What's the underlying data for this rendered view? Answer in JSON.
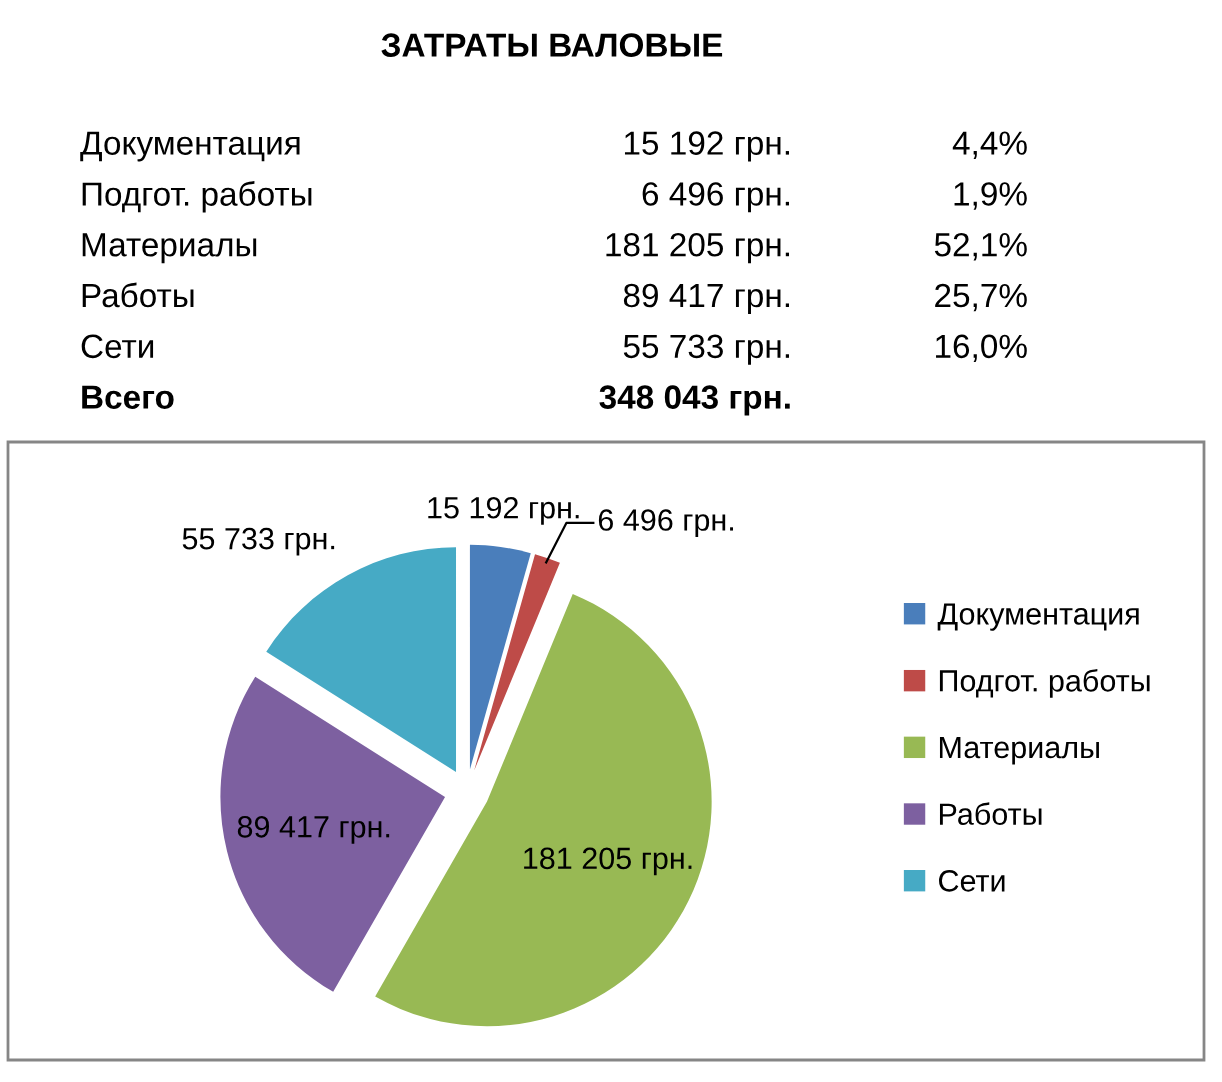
{
  "chart_data": [
    {
      "type": "other",
      "title": "ЗАТРАТЫ ВАЛОВЫЕ",
      "annotations": [
        "Документация",
        "15 192 грн.",
        "4,4%",
        "Подгот. работы",
        "6 496 грн.",
        "1,9%",
        "Материалы",
        "181 205 грн.",
        "52,1%",
        "Работы",
        "89 417 грн.",
        "25,7%",
        "Сети",
        "55 733 грн.",
        "16,0%",
        "Всего",
        "348 043 грн."
      ]
    },
    {
      "type": "pie",
      "categories": [
        "Документация",
        "Подгот. работы",
        "Материалы",
        "Работы",
        "Сети"
      ],
      "values": [
        15192,
        6496,
        181205,
        89417,
        55733
      ],
      "colors": [
        "#4a7ebb",
        "#be4b48",
        "#98b954",
        "#7d60a0",
        "#46aac5"
      ],
      "value_labels": [
        "15 192 грн.",
        "6 496 грн.",
        "181 205 грн.",
        "89 417 грн.",
        "55 733 грн."
      ],
      "legend": "right"
    }
  ]
}
